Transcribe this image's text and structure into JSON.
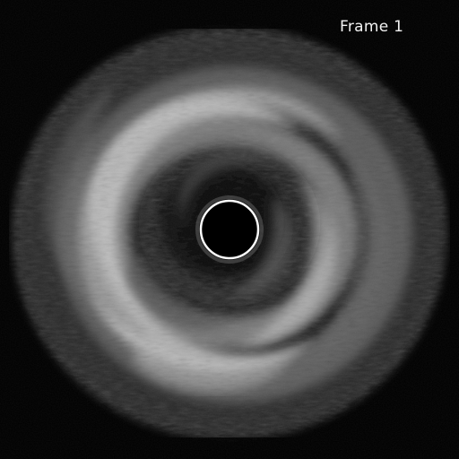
{
  "image": {
    "frame_label": "Frame 1",
    "colors": {
      "background": "#000000",
      "label": "#f2f2f2",
      "bright_tissue": "#d9d9d9",
      "mid_tissue": "#6a6a6a",
      "dark_tissue": "#202020",
      "catheter_ring": "#ffffff"
    }
  }
}
